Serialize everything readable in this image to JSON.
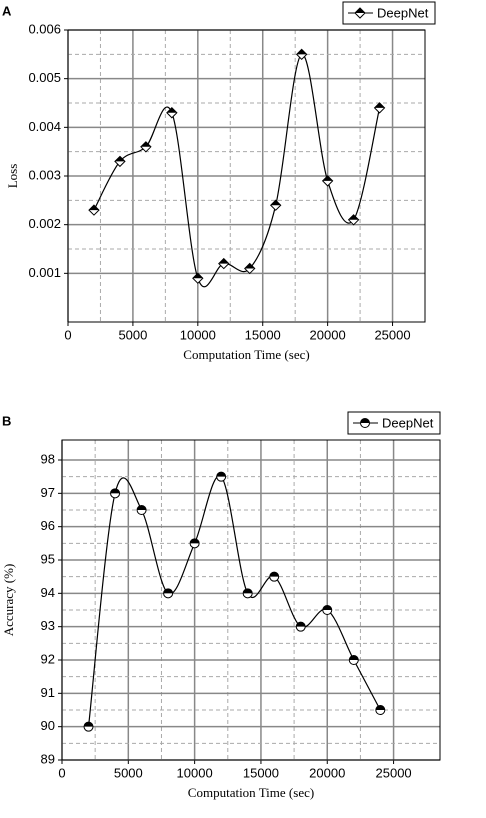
{
  "chart_data": [
    {
      "type": "line",
      "panel_label": "A",
      "x_label": "Computation Time (sec)",
      "y_label": "Loss",
      "x": [
        2000,
        4000,
        6000,
        8000,
        10000,
        12000,
        14000,
        16000,
        18000,
        20000,
        22000,
        24000
      ],
      "series": [
        {
          "name": "DeepNet",
          "color": "#000000",
          "marker": "diamond",
          "values": [
            0.0023,
            0.0033,
            0.0036,
            0.0043,
            0.0009,
            0.0012,
            0.0011,
            0.0024,
            0.0055,
            0.0029,
            0.0021,
            0.0044
          ]
        }
      ],
      "xlim": [
        0,
        27500
      ],
      "xticks": [
        0,
        5000,
        10000,
        15000,
        20000,
        25000
      ],
      "ylim": [
        0,
        0.006
      ],
      "yticks": [
        0.001,
        0.002,
        0.003,
        0.004,
        0.005,
        0.006
      ],
      "grid": true,
      "legend": "top-right"
    },
    {
      "type": "line",
      "panel_label": "B",
      "x_label": "Computation Time (sec)",
      "y_label": "Accuracy (%)",
      "x": [
        2000,
        4000,
        6000,
        8000,
        10000,
        12000,
        14000,
        16000,
        18000,
        20000,
        22000,
        24000
      ],
      "series": [
        {
          "name": "DeepNet",
          "color": "#000000",
          "marker": "circle",
          "values": [
            90,
            97,
            96.5,
            94,
            95.5,
            97.5,
            94,
            94.5,
            93,
            93.5,
            92,
            90.5
          ]
        }
      ],
      "xlim": [
        0,
        28500
      ],
      "xticks": [
        0,
        5000,
        10000,
        15000,
        20000,
        25000
      ],
      "ylim": [
        89,
        98.6
      ],
      "yticks": [
        89,
        90,
        91,
        92,
        93,
        94,
        95,
        96,
        97,
        98
      ],
      "grid": true,
      "legend": "top-right"
    }
  ]
}
